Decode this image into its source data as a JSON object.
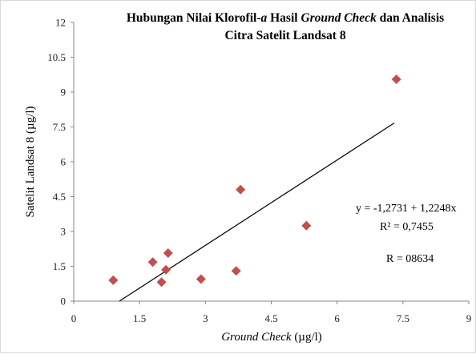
{
  "chart_data": {
    "type": "scatter",
    "title_lines": [
      [
        {
          "text": "Hubungan Nilai Klorofil-",
          "italic": false
        },
        {
          "text": "a",
          "italic": true
        },
        {
          "text": " Hasil ",
          "italic": false
        },
        {
          "text": "Ground Check",
          "italic": true
        },
        {
          "text": " dan Analisis",
          "italic": false
        }
      ],
      [
        {
          "text": "Citra Satelit Landsat 8",
          "italic": false
        }
      ]
    ],
    "xlabel": [
      {
        "text": "Ground Check",
        "italic": true
      },
      {
        "text": " (µg/l)",
        "italic": false
      }
    ],
    "ylabel": "Satelit Landsat 8  (µg/l)",
    "xlim": [
      0,
      9
    ],
    "ylim": [
      0,
      12
    ],
    "x_ticks": [
      "0",
      "1.5",
      "3",
      "4.5",
      "6",
      "7.5",
      "9"
    ],
    "y_ticks": [
      "0",
      "1.5",
      "3",
      "4.5",
      "6",
      "7.5",
      "9",
      "10.5",
      "12"
    ],
    "grid": false,
    "marker": "diamond",
    "marker_color": "#c0504d",
    "points": [
      {
        "x": 0.9,
        "y": 0.9
      },
      {
        "x": 1.8,
        "y": 1.68
      },
      {
        "x": 2.0,
        "y": 0.82
      },
      {
        "x": 2.1,
        "y": 1.35
      },
      {
        "x": 2.15,
        "y": 2.07
      },
      {
        "x": 2.9,
        "y": 0.95
      },
      {
        "x": 3.7,
        "y": 1.3
      },
      {
        "x": 3.8,
        "y": 4.8
      },
      {
        "x": 5.3,
        "y": 3.25
      },
      {
        "x": 7.35,
        "y": 9.55
      }
    ],
    "trendline": {
      "x_start": 1.04,
      "x_end": 7.3,
      "intercept": -1.2731,
      "slope": 1.2248,
      "color": "#000000"
    },
    "annotations": {
      "equation": "y =  -1,2731 + 1,2248x",
      "r_squared": "R² = 0,7455",
      "r": "R =  08634"
    }
  }
}
